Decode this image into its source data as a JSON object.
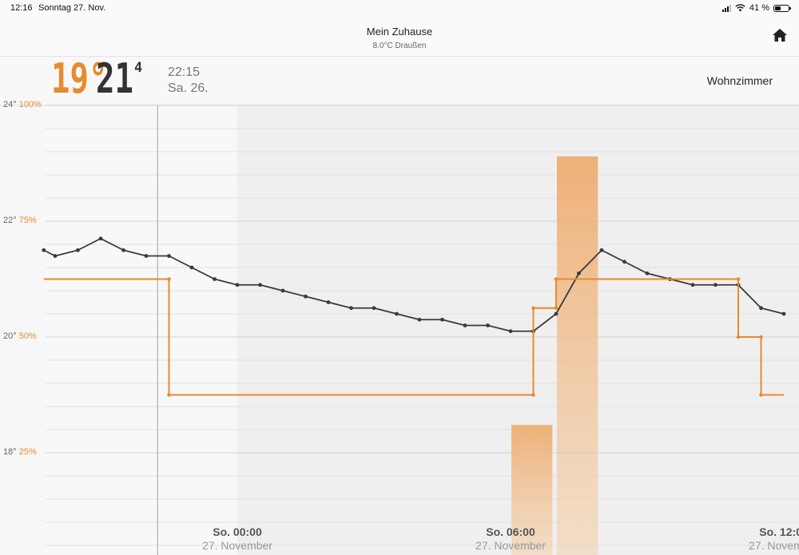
{
  "status_bar": {
    "time": "12:16",
    "date": "Sonntag 27. Nov.",
    "battery": "41 %",
    "battery_level": 0.41
  },
  "nav": {
    "title": "Mein Zuhause",
    "subtitle": "8.0°C Draußen",
    "home_icon": "home-icon"
  },
  "header": {
    "set_temp": "19°",
    "current_temp_main": "21",
    "current_temp_decimal": "4",
    "time": "22:15",
    "day": "Sa. 26.",
    "room": "Wohnzimmer"
  },
  "colors": {
    "accent": "#e88a2e",
    "line": "#3a3a3a",
    "bar": "#f0b27a"
  },
  "chart_data": {
    "type": "line",
    "y_left_ticks": [
      {
        "temp": "24°",
        "pct": "100%"
      },
      {
        "temp": "22°",
        "pct": "75%"
      },
      {
        "temp": "20°",
        "pct": "50%"
      },
      {
        "temp": "18°",
        "pct": "25%"
      }
    ],
    "ylim": [
      16.2,
      24
    ],
    "x_ticks": [
      {
        "label": "So. 00:00",
        "sub": "27. November",
        "hour": 0
      },
      {
        "label": "So. 06:00",
        "sub": "27. November",
        "hour": 6
      },
      {
        "label": "So. 12:00",
        "sub": "27. November",
        "hour": 12
      }
    ],
    "cursor_hour": -1.75,
    "series": [
      {
        "kind": "temperature",
        "x_hours": [
          -4.25,
          -4.0,
          -3.5,
          -3.0,
          -2.5,
          -2.0,
          -1.5,
          -1.0,
          -0.5,
          0.0,
          0.5,
          1.0,
          1.5,
          2.0,
          2.5,
          3.0,
          3.5,
          4.0,
          4.5,
          5.0,
          5.5,
          6.0,
          6.5,
          7.0,
          7.5,
          8.0,
          8.5,
          9.0,
          9.5,
          10.0,
          10.5,
          11.0,
          11.5,
          12.0
        ],
        "values": [
          21.5,
          21.4,
          21.5,
          21.7,
          21.5,
          21.4,
          21.4,
          21.2,
          21.0,
          20.9,
          20.9,
          20.8,
          20.7,
          20.6,
          20.5,
          20.5,
          20.4,
          20.3,
          20.3,
          20.2,
          20.2,
          20.1,
          20.1,
          20.4,
          21.1,
          21.5,
          21.3,
          21.1,
          21.0,
          20.9,
          20.9,
          20.9,
          20.5,
          20.4
        ]
      },
      {
        "kind": "setpoint",
        "x_hours": [
          -4.25,
          -1.5,
          -1.5,
          6.5,
          6.5,
          7.0,
          7.0,
          11.0,
          11.0,
          11.5,
          11.5,
          12.0
        ],
        "values": [
          21.0,
          21.0,
          19.0,
          19.0,
          20.5,
          20.5,
          21.0,
          21.0,
          20.0,
          20.0,
          19.0,
          19.0
        ]
      }
    ],
    "bars": [
      {
        "start_hour": 6.0,
        "end_hour": 6.9,
        "percent": 31
      },
      {
        "start_hour": 7.0,
        "end_hour": 7.9,
        "percent": 89
      }
    ]
  }
}
